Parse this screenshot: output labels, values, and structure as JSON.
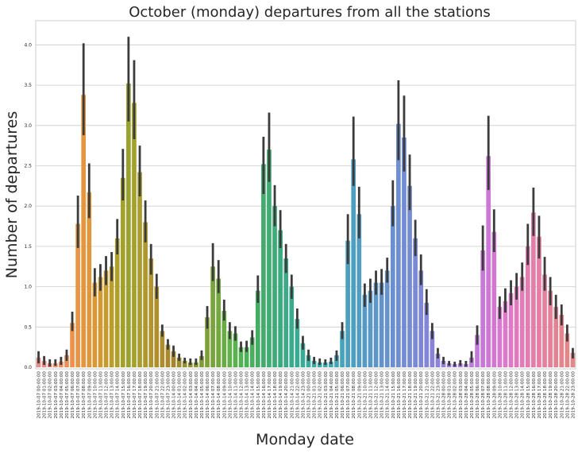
{
  "chart_data": {
    "type": "bar",
    "title": "October (monday) departures from all the stations",
    "xlabel": "Monday date",
    "ylabel": "Number of departures",
    "ylim": [
      0,
      4.3
    ],
    "yticks": [
      "0.0",
      "0.5",
      "1.0",
      "1.5",
      "2.0",
      "2.5",
      "3.0",
      "3.5",
      "4.0"
    ],
    "grid": "horizontal",
    "error_bars": true,
    "categories": [
      "2019-10-07 00:00:00",
      "2019-10-07 01:00:00",
      "2019-10-07 02:00:00",
      "2019-10-07 03:00:00",
      "2019-10-07 04:00:00",
      "2019-10-07 05:00:00",
      "2019-10-07 06:00:00",
      "2019-10-07 07:00:00",
      "2019-10-07 08:00:00",
      "2019-10-07 09:00:00",
      "2019-10-07 10:00:00",
      "2019-10-07 11:00:00",
      "2019-10-07 12:00:00",
      "2019-10-07 13:00:00",
      "2019-10-07 14:00:00",
      "2019-10-07 15:00:00",
      "2019-10-07 16:00:00",
      "2019-10-07 17:00:00",
      "2019-10-07 18:00:00",
      "2019-10-07 19:00:00",
      "2019-10-07 20:00:00",
      "2019-10-07 21:00:00",
      "2019-10-07 22:00:00",
      "2019-10-07 23:00:00",
      "2019-10-14 00:00:00",
      "2019-10-14 01:00:00",
      "2019-10-14 02:00:00",
      "2019-10-14 03:00:00",
      "2019-10-14 04:00:00",
      "2019-10-14 05:00:00",
      "2019-10-14 06:00:00",
      "2019-10-14 07:00:00",
      "2019-10-14 08:00:00",
      "2019-10-14 09:00:00",
      "2019-10-14 10:00:00",
      "2019-10-14 11:00:00",
      "2019-10-14 12:00:00",
      "2019-10-14 13:00:00",
      "2019-10-14 14:00:00",
      "2019-10-14 15:00:00",
      "2019-10-14 16:00:00",
      "2019-10-14 17:00:00",
      "2019-10-14 18:00:00",
      "2019-10-14 19:00:00",
      "2019-10-14 20:00:00",
      "2019-10-14 21:00:00",
      "2019-10-14 22:00:00",
      "2019-10-14 23:00:00",
      "2019-10-21 00:00:00",
      "2019-10-21 01:00:00",
      "2019-10-21 02:00:00",
      "2019-10-21 03:00:00",
      "2019-10-21 04:00:00",
      "2019-10-21 05:00:00",
      "2019-10-21 06:00:00",
      "2019-10-21 07:00:00",
      "2019-10-21 08:00:00",
      "2019-10-21 09:00:00",
      "2019-10-21 10:00:00",
      "2019-10-21 11:00:00",
      "2019-10-21 12:00:00",
      "2019-10-21 13:00:00",
      "2019-10-21 14:00:00",
      "2019-10-21 15:00:00",
      "2019-10-21 16:00:00",
      "2019-10-21 17:00:00",
      "2019-10-21 18:00:00",
      "2019-10-21 19:00:00",
      "2019-10-21 20:00:00",
      "2019-10-21 21:00:00",
      "2019-10-21 22:00:00",
      "2019-10-21 23:00:00",
      "2019-10-28 00:00:00",
      "2019-10-28 01:00:00",
      "2019-10-28 02:00:00",
      "2019-10-28 03:00:00",
      "2019-10-28 04:00:00",
      "2019-10-28 05:00:00",
      "2019-10-28 06:00:00",
      "2019-10-28 07:00:00",
      "2019-10-28 08:00:00",
      "2019-10-28 09:00:00",
      "2019-10-28 10:00:00",
      "2019-10-28 11:00:00",
      "2019-10-28 12:00:00",
      "2019-10-28 13:00:00",
      "2019-10-28 14:00:00",
      "2019-10-28 15:00:00",
      "2019-10-28 16:00:00",
      "2019-10-28 17:00:00",
      "2019-10-28 18:00:00",
      "2019-10-28 19:00:00",
      "2019-10-28 20:00:00",
      "2019-10-28 21:00:00",
      "2019-10-28 22:00:00",
      "2019-10-28 23:00:00"
    ],
    "values": [
      0.12,
      0.08,
      0.05,
      0.05,
      0.07,
      0.15,
      0.55,
      1.78,
      3.38,
      2.17,
      1.05,
      1.12,
      1.2,
      1.25,
      1.6,
      2.35,
      3.52,
      3.28,
      2.42,
      1.8,
      1.35,
      1.0,
      0.45,
      0.28,
      0.2,
      0.12,
      0.08,
      0.06,
      0.06,
      0.14,
      0.62,
      1.25,
      1.1,
      0.7,
      0.45,
      0.42,
      0.25,
      0.25,
      0.37,
      0.95,
      2.52,
      2.7,
      2.0,
      1.7,
      1.35,
      1.0,
      0.6,
      0.3,
      0.15,
      0.08,
      0.06,
      0.06,
      0.07,
      0.15,
      0.45,
      1.57,
      2.58,
      1.9,
      0.9,
      0.95,
      1.05,
      1.05,
      1.2,
      2.0,
      3.02,
      2.85,
      2.25,
      1.6,
      1.2,
      0.8,
      0.45,
      0.17,
      0.08,
      0.05,
      0.04,
      0.05,
      0.04,
      0.12,
      0.4,
      1.45,
      2.62,
      1.68,
      0.75,
      0.82,
      0.92,
      1.0,
      1.12,
      1.5,
      1.92,
      1.62,
      1.15,
      0.95,
      0.75,
      0.65,
      0.42,
      0.18
    ],
    "error_low": [
      0.05,
      0.03,
      0.01,
      0.02,
      0.03,
      0.08,
      0.45,
      1.48,
      2.88,
      1.85,
      0.88,
      0.95,
      1.02,
      1.07,
      1.4,
      2.07,
      3.05,
      2.83,
      2.12,
      1.55,
      1.15,
      0.85,
      0.38,
      0.22,
      0.13,
      0.08,
      0.05,
      0.03,
      0.03,
      0.09,
      0.48,
      1.07,
      0.92,
      0.58,
      0.35,
      0.33,
      0.19,
      0.19,
      0.28,
      0.8,
      2.15,
      2.3,
      1.75,
      1.48,
      1.17,
      0.85,
      0.48,
      0.22,
      0.08,
      0.04,
      0.03,
      0.03,
      0.04,
      0.08,
      0.35,
      1.28,
      2.25,
      1.6,
      0.75,
      0.8,
      0.9,
      0.9,
      1.05,
      1.75,
      2.57,
      2.43,
      1.95,
      1.38,
      1.02,
      0.65,
      0.35,
      0.11,
      0.04,
      0.02,
      0.01,
      0.02,
      0.01,
      0.06,
      0.28,
      1.2,
      2.2,
      1.43,
      0.6,
      0.68,
      0.77,
      0.84,
      0.95,
      1.27,
      1.63,
      1.35,
      0.95,
      0.77,
      0.6,
      0.52,
      0.32,
      0.11
    ],
    "error_high": [
      0.2,
      0.14,
      0.1,
      0.1,
      0.13,
      0.22,
      0.69,
      2.13,
      4.02,
      2.53,
      1.23,
      1.28,
      1.38,
      1.43,
      1.84,
      2.71,
      4.1,
      3.81,
      2.75,
      2.07,
      1.53,
      1.16,
      0.53,
      0.35,
      0.27,
      0.17,
      0.12,
      0.11,
      0.11,
      0.21,
      0.76,
      1.54,
      1.33,
      0.84,
      0.56,
      0.51,
      0.32,
      0.33,
      0.46,
      1.14,
      2.86,
      3.16,
      2.26,
      1.95,
      1.53,
      1.15,
      0.73,
      0.39,
      0.22,
      0.13,
      0.11,
      0.1,
      0.12,
      0.21,
      0.56,
      1.9,
      3.11,
      2.24,
      1.04,
      1.1,
      1.2,
      1.22,
      1.36,
      2.32,
      3.56,
      3.37,
      2.64,
      1.83,
      1.4,
      0.97,
      0.55,
      0.24,
      0.13,
      0.08,
      0.07,
      0.09,
      0.08,
      0.2,
      0.52,
      1.76,
      3.12,
      1.96,
      0.88,
      0.98,
      1.08,
      1.17,
      1.3,
      1.78,
      2.23,
      1.88,
      1.37,
      1.12,
      0.9,
      0.78,
      0.53,
      0.24
    ],
    "colors": [
      "#e88b8b",
      "#ec8a82",
      "#ef8b77",
      "#ef8c6b",
      "#ee8e60",
      "#ec9055",
      "#ea924c",
      "#e89445",
      "#e4953f",
      "#df973a",
      "#d99836",
      "#d19a32",
      "#c69b2e",
      "#ba9d2b",
      "#ad9f2a",
      "#a1a12b",
      "#99a22e",
      "#a4a02e",
      "#aa9c2e",
      "#ae982e",
      "#b0952e",
      "#b0902e",
      "#ad8c2e",
      "#a9882e",
      "#a5862f",
      "#9c8d2f",
      "#95902f",
      "#8f9431",
      "#889734",
      "#839b36",
      "#7ea038",
      "#78a43b",
      "#72a83e",
      "#6aac44",
      "#62b04a",
      "#5bb050",
      "#55b055",
      "#4fb05a",
      "#4aae5f",
      "#46ad65",
      "#43ac6c",
      "#40ab72",
      "#3dab78",
      "#3bab7f",
      "#3aab86",
      "#3aab8c",
      "#3aab92",
      "#3bab98",
      "#3cab9e",
      "#3daba4",
      "#3ea9aa",
      "#40a8b0",
      "#42a6b4",
      "#45a4b8",
      "#48a2bb",
      "#4ba0bd",
      "#4e9ebf",
      "#529cc1",
      "#569ac4",
      "#5a98c6",
      "#5e96c8",
      "#6294ca",
      "#6692cd",
      "#6a90cf",
      "#6e8ed1",
      "#728cd3",
      "#768bd4",
      "#7a89d5",
      "#7e87d6",
      "#8385d7",
      "#8983d8",
      "#8f82d9",
      "#9681da",
      "#9d80db",
      "#a47fdb",
      "#ab7ddb",
      "#b27cdb",
      "#b97ada",
      "#c079d9",
      "#c778d8",
      "#cd77d6",
      "#d377d2",
      "#d878ce",
      "#dc79c9",
      "#df79c3",
      "#e17abd",
      "#e27bb7",
      "#e37cb1",
      "#e47daa",
      "#e47ea4",
      "#e4809e",
      "#e48198",
      "#e48293",
      "#e4848d",
      "#e4858a",
      "#e48787"
    ]
  }
}
